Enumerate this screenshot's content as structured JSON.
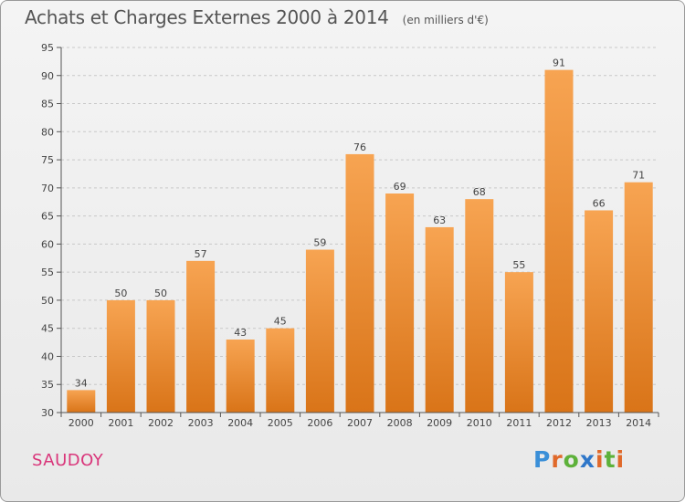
{
  "header": {
    "title": "Achats et Charges Externes 2000 à 2014",
    "subtitle": "(en milliers d'€)"
  },
  "commune": "SAUDOY",
  "logo": {
    "text": "Proxiti",
    "letter_colors": [
      "#3a8fd8",
      "#e0692a",
      "#5db13a",
      "#2f77c9",
      "#e0692a",
      "#5db13a",
      "#e0692a"
    ]
  },
  "colors": {
    "bar_top": "#f7a452",
    "bar_bottom": "#d97418",
    "grid": "#c8c8c8",
    "axis": "#555555"
  },
  "chart_data": {
    "type": "bar",
    "categories": [
      "2000",
      "2001",
      "2002",
      "2003",
      "2004",
      "2005",
      "2006",
      "2007",
      "2008",
      "2009",
      "2010",
      "2011",
      "2012",
      "2013",
      "2014"
    ],
    "values": [
      34,
      50,
      50,
      57,
      43,
      45,
      59,
      76,
      69,
      63,
      68,
      55,
      91,
      66,
      71
    ],
    "data_labels": [
      "34",
      "50",
      "50",
      "57",
      "43",
      "45",
      "59",
      "76",
      "69",
      "63",
      "68",
      "55",
      "91",
      "66",
      "71"
    ],
    "title": "Achats et Charges Externes 2000 à 2014",
    "subtitle": "(en milliers d'€)",
    "xlabel": "",
    "ylabel": "",
    "ylim": [
      30,
      95
    ],
    "yticks": [
      30,
      35,
      40,
      45,
      50,
      55,
      60,
      65,
      70,
      75,
      80,
      85,
      90,
      95
    ],
    "grid": "horizontal dashed",
    "legend": "none"
  }
}
